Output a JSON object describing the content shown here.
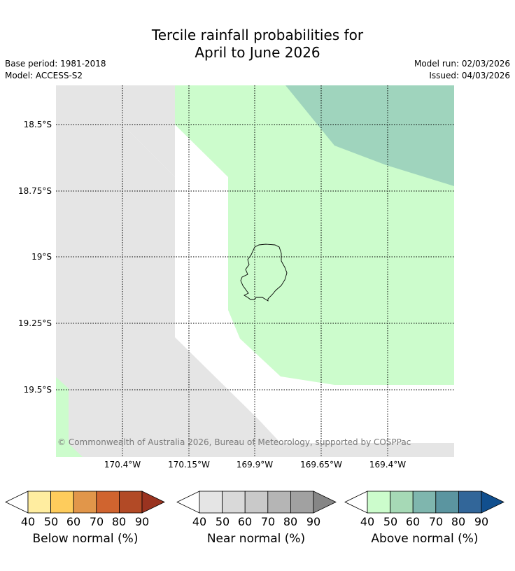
{
  "title": {
    "line1": "Tercile rainfall probabilities for",
    "line2": "April to June 2026"
  },
  "meta": {
    "base_period": "Base period: 1981-2018",
    "model": "Model: ACCESS-S2",
    "model_run": "Model run: 02/03/2026",
    "issued": "Issued: 04/03/2026"
  },
  "map": {
    "copyright": "© Commonwealth of Australia 2026, Bureau of Meteorology, supported by COSPPac",
    "latitude_labels": [
      "18.5°S",
      "18.75°S",
      "19°S",
      "19.25°S",
      "19.5°S"
    ],
    "longitude_labels": [
      "170.4°W",
      "170.15°W",
      "169.9°W",
      "169.65°W",
      "169.4°W"
    ],
    "colors": {
      "near_normal_40": "#e5e5e5",
      "above_normal_40": "#ccfccc",
      "above_normal_50": "#9fd4bd",
      "coastline": "#000000",
      "gridline": "#000000"
    }
  },
  "legends": [
    {
      "title": "Below normal (%)",
      "ticks": [
        "40",
        "50",
        "60",
        "70",
        "80",
        "90"
      ],
      "colors": [
        "#ffffff",
        "#ffeda0",
        "#fecc5c",
        "#e1964a",
        "#d0642f",
        "#b24a26",
        "#9a3320"
      ]
    },
    {
      "title": "Near normal (%)",
      "ticks": [
        "40",
        "50",
        "60",
        "70",
        "80",
        "90"
      ],
      "colors": [
        "#ffffff",
        "#e5e5e5",
        "#d9d9d9",
        "#c9c9c9",
        "#b5b5b5",
        "#a1a1a1",
        "#868686"
      ]
    },
    {
      "title": "Above normal (%)",
      "ticks": [
        "40",
        "50",
        "60",
        "70",
        "80",
        "90"
      ],
      "colors": [
        "#ffffff",
        "#ccfccc",
        "#a6d9b6",
        "#7fb6ae",
        "#5b95a0",
        "#326699",
        "#114f8e"
      ]
    }
  ]
}
